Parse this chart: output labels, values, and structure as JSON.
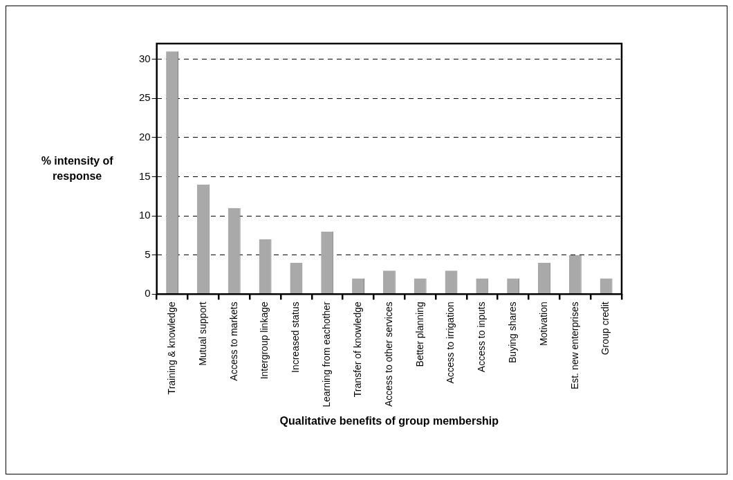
{
  "chart_data": {
    "type": "bar",
    "xlabel": "Qualitative benefits of group membership",
    "ylabel": "% intensity of response",
    "categories": [
      "Training & knowledge",
      "Mutual support",
      "Access to markets",
      "Intergroup linkage",
      "Increased status",
      "Learning from eachother",
      "Transfer of knowledge",
      "Access to other services",
      "Better planning",
      "Access to irrigation",
      "Access to inputs",
      "Buying shares",
      "Motivation",
      "Est. new enterprises",
      "Group credit"
    ],
    "values": [
      31,
      14,
      11,
      7,
      4,
      8,
      2,
      3,
      2,
      3,
      2,
      2,
      4,
      5,
      2
    ],
    "color": "#a9a9a9",
    "ylim": [
      0,
      32
    ],
    "yticks": [
      0,
      5,
      10,
      15,
      20,
      25,
      30
    ],
    "grid": "y",
    "legend": false
  }
}
